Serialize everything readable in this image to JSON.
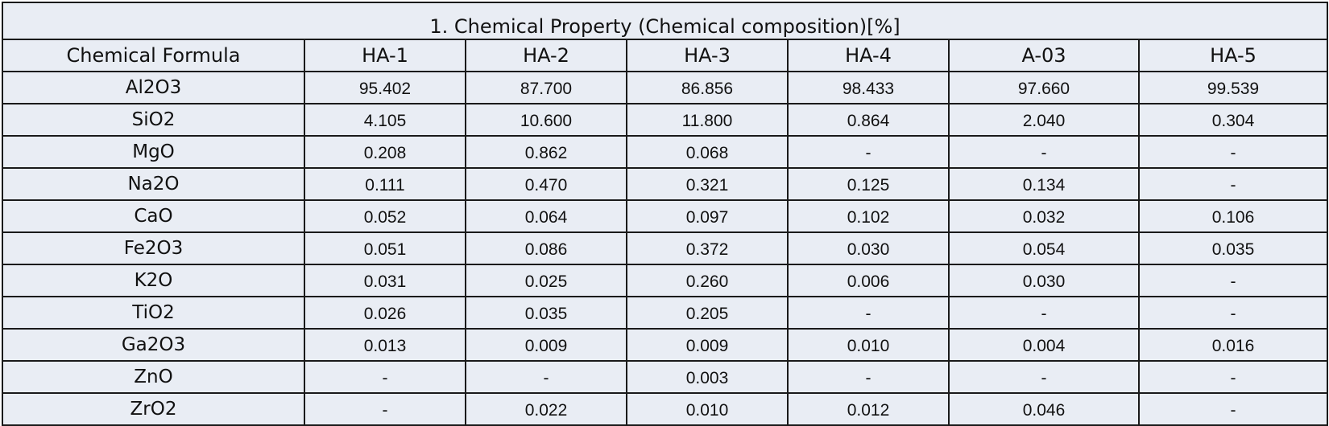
{
  "table": {
    "title": "1. Chemical Property (Chemical composition)[%]",
    "columns": [
      "Chemical Formula",
      "HA-1",
      "HA-2",
      "HA-3",
      "HA-4",
      "A-03",
      "HA-5"
    ],
    "rows": [
      {
        "formula": "Al2O3",
        "values": [
          "95.402",
          "87.700",
          "86.856",
          "98.433",
          "97.660",
          "99.539"
        ]
      },
      {
        "formula": "SiO2",
        "values": [
          "4.105",
          "10.600",
          "11.800",
          "0.864",
          "2.040",
          "0.304"
        ]
      },
      {
        "formula": "MgO",
        "values": [
          "0.208",
          "0.862",
          "0.068",
          "-",
          "-",
          "-"
        ]
      },
      {
        "formula": "Na2O",
        "values": [
          "0.111",
          "0.470",
          "0.321",
          "0.125",
          "0.134",
          "-"
        ]
      },
      {
        "formula": "CaO",
        "values": [
          "0.052",
          "0.064",
          "0.097",
          "0.102",
          "0.032",
          "0.106"
        ]
      },
      {
        "formula": "Fe2O3",
        "values": [
          "0.051",
          "0.086",
          "0.372",
          "0.030",
          "0.054",
          "0.035"
        ]
      },
      {
        "formula": "K2O",
        "values": [
          "0.031",
          "0.025",
          "0.260",
          "0.006",
          "0.030",
          "-"
        ]
      },
      {
        "formula": "TiO2",
        "values": [
          "0.026",
          "0.035",
          "0.205",
          "-",
          "-",
          "-"
        ]
      },
      {
        "formula": "Ga2O3",
        "values": [
          "0.013",
          "0.009",
          "0.009",
          "0.010",
          "0.004",
          "0.016"
        ]
      },
      {
        "formula": "ZnO",
        "values": [
          "-",
          "-",
          "0.003",
          "-",
          "-",
          "-"
        ]
      },
      {
        "formula": "ZrO2",
        "values": [
          "-",
          "0.022",
          "0.010",
          "0.012",
          "0.046",
          "-"
        ]
      }
    ]
  }
}
